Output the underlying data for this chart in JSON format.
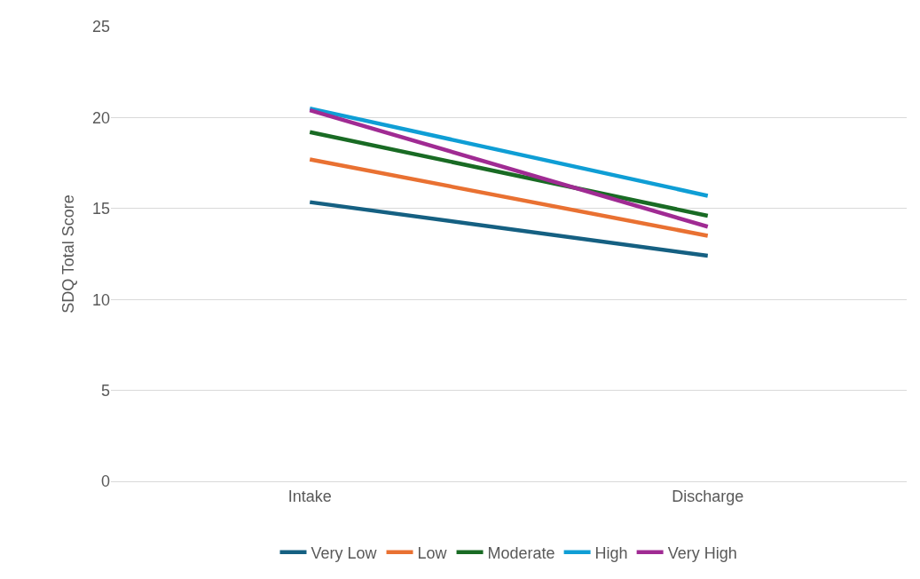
{
  "chart_data": {
    "type": "line",
    "ylabel": "SDQ Total Score",
    "categories": [
      "Intake",
      "Discharge"
    ],
    "series": [
      {
        "name": "Very Low",
        "color": "#156082",
        "values": [
          15.35,
          12.4
        ]
      },
      {
        "name": "Low",
        "color": "#e97132",
        "values": [
          17.7,
          13.5
        ]
      },
      {
        "name": "Moderate",
        "color": "#196b24",
        "values": [
          19.2,
          14.6
        ]
      },
      {
        "name": "High",
        "color": "#0f9ed5",
        "values": [
          20.5,
          15.7
        ]
      },
      {
        "name": "Very High",
        "color": "#a02b93",
        "values": [
          20.4,
          14.0
        ]
      }
    ],
    "ylim": [
      0,
      25
    ],
    "yticks": [
      0,
      5,
      10,
      15,
      20,
      25
    ],
    "grid": "y",
    "legend": "bottom",
    "marker": "none",
    "line_style": "solid"
  }
}
